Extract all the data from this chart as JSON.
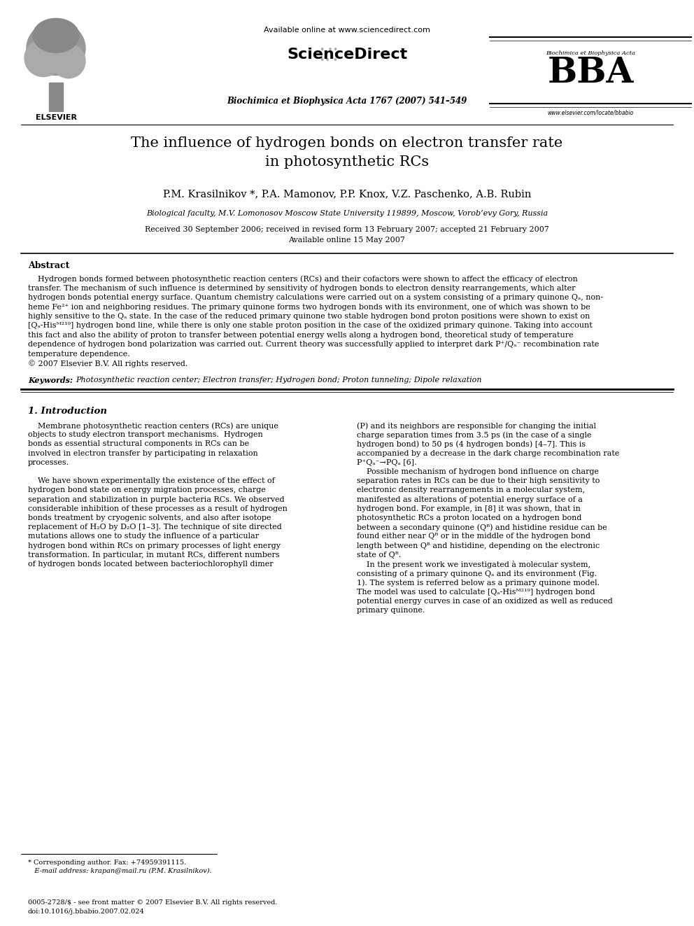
{
  "background_color": "#ffffff",
  "page_width": 9.92,
  "page_height": 13.23,
  "dpi": 100,
  "header": {
    "available_online_text": "Available online at www.sciencedirect.com",
    "journal_info": "Biochimica et Biophysica Acta 1767 (2007) 541–549",
    "elsevier_text": "ELSEVIER",
    "bba_text": "BBA",
    "bba_subtext": "Biochimica et Biophysica Acta",
    "website_text": "www.elsevier.com/locate/bbabio"
  },
  "title_line1": "The influence of hydrogen bonds on electron transfer rate",
  "title_line2": "in photosynthetic RCs",
  "authors": "P.M. Krasilnikov *, P.A. Mamonov, P.P. Knox, V.Z. Paschenko, A.B. Rubin",
  "affiliation": "Biological faculty, M.V. Lomonosov Moscow State University 119899, Moscow, Vorob’evy Gory, Russia",
  "date_line1": "Received 30 September 2006; received in revised form 13 February 2007; accepted 21 February 2007",
  "date_line2": "Available online 15 May 2007",
  "abstract_title": "Abstract",
  "keywords_label": "Keywords:",
  "keywords_text": "Photosynthetic reaction center; Electron transfer; Hydrogen bond; Proton tunneling; Dipole relaxation",
  "section1_title": "1. Introduction",
  "footnote_line1": "* Corresponding author. Fax: +74959391115.",
  "footnote_line2": "   E-mail address: krapan@mail.ru (P.M. Krasilnikov).",
  "footer_line1": "0005-2728/$ - see front matter © 2007 Elsevier B.V. All rights reserved.",
  "footer_line2": "doi:10.1016/j.bbabio.2007.02.024"
}
